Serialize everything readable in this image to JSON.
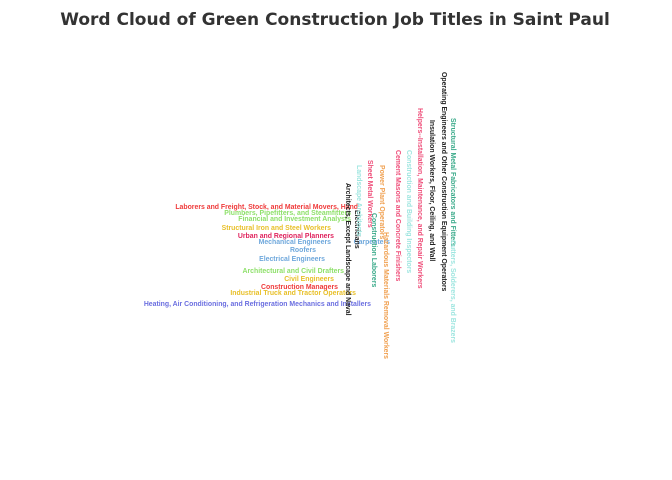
{
  "chart_data": {
    "type": "wordcloud",
    "title": "Word Cloud of Green Construction Job Titles in Saint Paul",
    "words": [
      {
        "text": "Laborers and Freight, Stock, and Material Movers, Hand",
        "color": "#ef3b3b",
        "orientation": "horizontal"
      },
      {
        "text": "Plumbers, Pipefitters, and Steamfitters",
        "color": "#8ee06a",
        "orientation": "horizontal"
      },
      {
        "text": "Financial and Investment Analysts",
        "color": "#8ee06a",
        "orientation": "horizontal"
      },
      {
        "text": "Structural Iron and Steel Workers",
        "color": "#e8c02a",
        "orientation": "horizontal"
      },
      {
        "text": "Urban and Regional Planners",
        "color": "#e0245e",
        "orientation": "horizontal"
      },
      {
        "text": "Mechanical Engineers",
        "color": "#6fa8dc",
        "orientation": "horizontal"
      },
      {
        "text": "Carpenters",
        "color": "#6fa8dc",
        "orientation": "horizontal"
      },
      {
        "text": "Roofers",
        "color": "#6fa8dc",
        "orientation": "horizontal"
      },
      {
        "text": "Electrical Engineers",
        "color": "#6fa8dc",
        "orientation": "horizontal"
      },
      {
        "text": "Architectural and Civil Drafters",
        "color": "#8ee06a",
        "orientation": "horizontal"
      },
      {
        "text": "Civil Engineers",
        "color": "#e8c02a",
        "orientation": "horizontal"
      },
      {
        "text": "Construction Managers",
        "color": "#ef3b3b",
        "orientation": "horizontal"
      },
      {
        "text": "Industrial Truck and Tractor Operators",
        "color": "#e8c02a",
        "orientation": "horizontal"
      },
      {
        "text": "Heating, Air Conditioning, and Refrigeration Mechanics and Installers",
        "color": "#6b6fe0",
        "orientation": "horizontal"
      },
      {
        "text": "Architects, Except Landscape and Naval",
        "color": "#222222",
        "orientation": "vertical"
      },
      {
        "text": "Electricians",
        "color": "#222222",
        "orientation": "vertical"
      },
      {
        "text": "Landscape Architects",
        "color": "#9fe6e0",
        "orientation": "vertical"
      },
      {
        "text": "Sheet Metal Workers",
        "color": "#ef4f7a",
        "orientation": "vertical"
      },
      {
        "text": "Construction Laborers",
        "color": "#3aaa8a",
        "orientation": "vertical"
      },
      {
        "text": "Power Plant Operators",
        "color": "#f0a050",
        "orientation": "vertical"
      },
      {
        "text": "Hazardous Materials Removal Workers",
        "color": "#f0a050",
        "orientation": "vertical"
      },
      {
        "text": "Cement Masons and Concrete Finishers",
        "color": "#ef4f7a",
        "orientation": "vertical"
      },
      {
        "text": "Construction and Building Inspectors",
        "color": "#9fe6e0",
        "orientation": "vertical"
      },
      {
        "text": "Helpers--Installation, Maintenance, and Repair Workers",
        "color": "#ef4f7a",
        "orientation": "vertical"
      },
      {
        "text": "Insulation Workers, Floor, Ceiling, and Wall",
        "color": "#222222",
        "orientation": "vertical"
      },
      {
        "text": "Operating Engineers and Other Construction Equipment Operators",
        "color": "#222222",
        "orientation": "vertical"
      },
      {
        "text": "Structural Metal Fabricators and Fitters",
        "color": "#3aaa8a",
        "orientation": "vertical"
      },
      {
        "text": "Cutters, Solderers, and Brazers",
        "color": "#9fe6e0",
        "orientation": "vertical"
      }
    ]
  }
}
